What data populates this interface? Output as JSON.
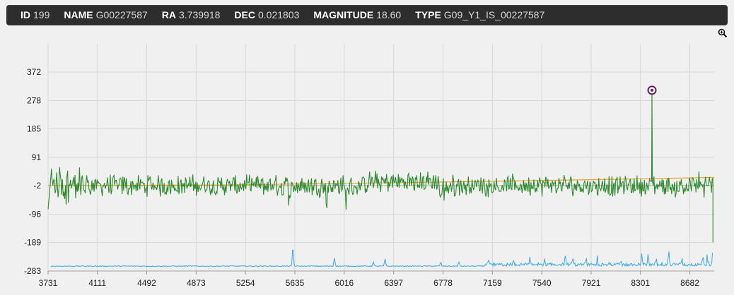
{
  "header": {
    "fields": [
      {
        "key": "ID",
        "value": "199"
      },
      {
        "key": "NAME",
        "value": "G00227587"
      },
      {
        "key": "RA",
        "value": "3.739918"
      },
      {
        "key": "DEC",
        "value": "0.021803"
      },
      {
        "key": "MAGNITUDE",
        "value": "18.60"
      },
      {
        "key": "TYPE",
        "value": "G09_Y1_IS_00227587"
      }
    ]
  },
  "toolbar": {
    "zoom_icon": "zoom-in-icon"
  },
  "chart_data": {
    "type": "line",
    "xlim": [
      3731,
      8870
    ],
    "ylim": [
      -283,
      465
    ],
    "x_ticks": [
      "3731",
      "4111",
      "4492",
      "4873",
      "5254",
      "5635",
      "6016",
      "6397",
      "6778",
      "7159",
      "7540",
      "7921",
      "8301",
      "8682"
    ],
    "y_ticks": [
      "372",
      "278",
      "185",
      "91",
      "-2",
      "-96",
      "-189",
      "-283"
    ],
    "grid": true,
    "colors": {
      "flux": "#2e8b2e",
      "continuum": "#f0a030",
      "error": "#3aa8e8",
      "marker": "#6a1b6a"
    },
    "marker": {
      "x": 8390,
      "y": 312
    },
    "series": [
      {
        "key": "flux",
        "values": []
      },
      {
        "key": "continuum",
        "points": [
          [
            3731,
            -2
          ],
          [
            5000,
            0
          ],
          [
            6500,
            8
          ],
          [
            8000,
            18
          ],
          [
            8870,
            25
          ]
        ]
      },
      {
        "key": "error",
        "baseline": -267,
        "spikes": [
          [
            5620,
            75
          ],
          [
            5940,
            30
          ],
          [
            6240,
            15
          ],
          [
            6330,
            25
          ],
          [
            6760,
            15
          ],
          [
            6900,
            15
          ],
          [
            7130,
            22
          ],
          [
            7320,
            32
          ],
          [
            7450,
            30
          ],
          [
            7560,
            25
          ],
          [
            7720,
            40
          ],
          [
            7780,
            50
          ],
          [
            7880,
            48
          ],
          [
            7970,
            40
          ],
          [
            8060,
            32
          ],
          [
            8150,
            28
          ],
          [
            8310,
            58
          ],
          [
            8360,
            50
          ],
          [
            8420,
            55
          ],
          [
            8470,
            48
          ],
          [
            8520,
            52
          ],
          [
            8620,
            35
          ],
          [
            8780,
            65
          ],
          [
            8820,
            72
          ],
          [
            8860,
            60
          ]
        ]
      }
    ]
  }
}
